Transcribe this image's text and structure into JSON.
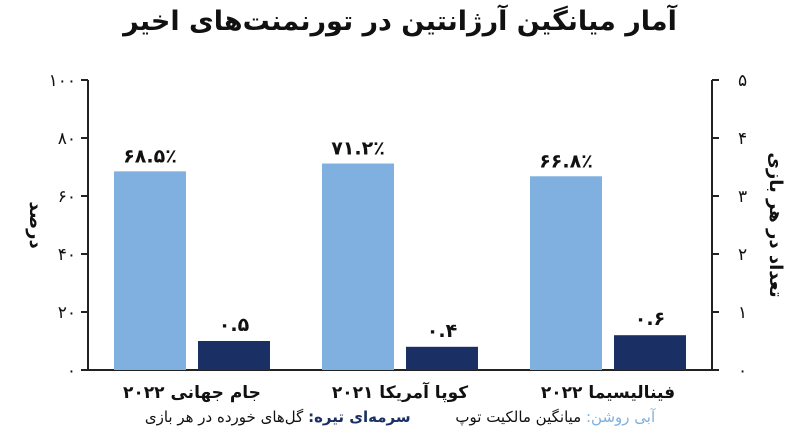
{
  "chart_data": {
    "type": "bar",
    "title": "آمار میانگین آرژانتین در تورنمنت‌های اخیر",
    "categories": [
      "جام جهانی ۲۰۲۲",
      "کوپا آمریکا ۲۰۲۱",
      "فینالیسیما ۲۰۲۲"
    ],
    "series": [
      {
        "axis": "left",
        "color": "#7fb0df",
        "values": [
          68.5,
          71.2,
          66.8
        ],
        "labels": [
          "۶۸.۵٪",
          "۷۱.۲٪",
          "۶۶.۸٪"
        ]
      },
      {
        "axis": "right",
        "color": "#1a2f63",
        "values": [
          0.5,
          0.4,
          0.6
        ],
        "labels": [
          "۰.۵",
          "۰.۴",
          "۰.۶"
        ]
      }
    ],
    "ylabel": "درصد",
    "ylim": [
      0,
      100
    ],
    "yticks": [
      "۰",
      "۲۰",
      "۴۰",
      "۶۰",
      "۸۰",
      "۱۰۰"
    ],
    "y2label": "تعداد در هر بازی",
    "y2lim": [
      0,
      5
    ],
    "y2ticks": [
      "۰",
      "۱",
      "۲",
      "۳",
      "۴",
      "۵"
    ],
    "legend": {
      "placement": "bottom",
      "item1_key": "آبی روشن:",
      "item1_text": " میانگین مالکیت توپ",
      "item2_key": "سرمه‌ای تیره:",
      "item2_text": " گل‌های خورده در هر بازی"
    },
    "grid": false
  }
}
